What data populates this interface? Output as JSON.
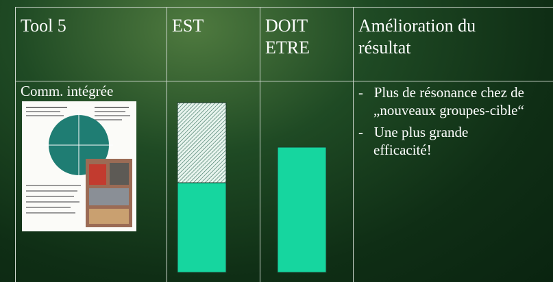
{
  "table": {
    "header": [
      "Tool 5",
      "EST",
      "DOIT ETRE",
      "Amélioration du résultat"
    ],
    "row": {
      "label": "Comm. intégrée",
      "bullets": [
        "Plus de résonance chez de „nouveaux groupes-cible“",
        "Une plus grande efficacité!"
      ]
    }
  }
}
